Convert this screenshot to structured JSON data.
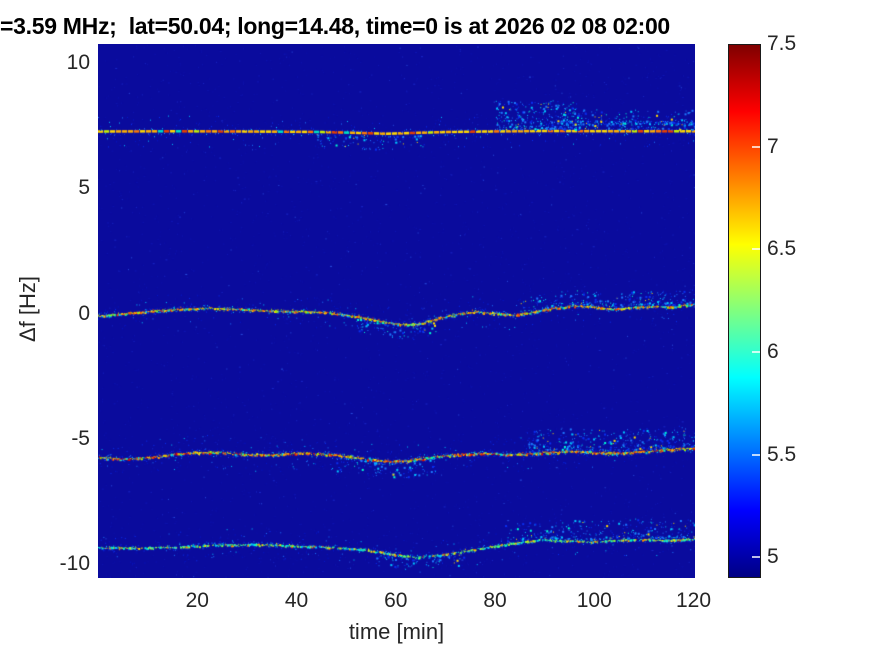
{
  "title": "=3.59 MHz;  lat=50.04; long=14.48, time=0 is at 2026 02 08 02:00",
  "axes": {
    "xlabel": "time [min]",
    "ylabel": "Δf [Hz]",
    "xlim": [
      0,
      120.3
    ],
    "ylim": [
      -10.55,
      10.75
    ],
    "x_ticks": [
      20,
      40,
      60,
      80,
      100,
      120
    ],
    "y_ticks": [
      10,
      5,
      0,
      -5,
      -10
    ],
    "grid": false
  },
  "colorbar": {
    "min": 4.9,
    "max": 7.5,
    "ticks": [
      7.5,
      7,
      6.5,
      6,
      5.5,
      5
    ],
    "jet_stops": [
      {
        "frac": 0.0,
        "color": "#000084"
      },
      {
        "frac": 0.125,
        "color": "#0000ff"
      },
      {
        "frac": 0.375,
        "color": "#00ffff"
      },
      {
        "frac": 0.625,
        "color": "#ffff00"
      },
      {
        "frac": 0.875,
        "color": "#ff0000"
      },
      {
        "frac": 1.0,
        "color": "#800000"
      }
    ]
  },
  "chart_data": {
    "type": "heatmap",
    "subtype": "doppler-spectrogram",
    "description": "HF Doppler-shift spectrogram at 3.59 MHz: four narrow speckled spectral traces on a dark-blue noise floor, near Δf ≈ +7.25, +0.1, -5.6 and -9.3 Hz, each wavering slightly over 0–120 min; extra scattered echoes appear above every trace after t ≈ 80–90 min.",
    "colormap": "jet",
    "value_range": [
      4.9,
      7.5
    ],
    "noise_floor_value": 5.0,
    "background_color": "#0a0b9d",
    "palette": {
      "halo_colors": [
        [
          "#0617c8",
          0.38
        ],
        [
          "#0a2ff0",
          0.3
        ],
        [
          "#1e78ff",
          0.2
        ],
        [
          "#00c8ff",
          0.12
        ]
      ],
      "scatter_colors": [
        [
          "#0a2ff0",
          0.33
        ],
        [
          "#1e78ff",
          0.3
        ],
        [
          "#00c8ff",
          0.24
        ],
        [
          "#00ffd0",
          0.08
        ],
        [
          "#ffe000",
          0.05
        ]
      ],
      "field_noise": {
        "count": 3200,
        "colors": [
          [
            "#0d12ab",
            0.55
          ],
          [
            "#1016b4",
            0.3
          ],
          [
            "#1a28c8",
            0.11
          ],
          [
            "#2a50e0",
            0.04
          ]
        ]
      }
    },
    "traces": [
      {
        "label": "carrier trace ~ +7.25 Hz",
        "mean_hz": 7.25,
        "style": "dash",
        "dash": {
          "period": 6,
          "on": 4.2,
          "height": 2.5
        },
        "points": [
          [
            0,
            7.26
          ],
          [
            15,
            7.27
          ],
          [
            30,
            7.26
          ],
          [
            45,
            7.24
          ],
          [
            53,
            7.2
          ],
          [
            58,
            7.17
          ],
          [
            63,
            7.2
          ],
          [
            70,
            7.24
          ],
          [
            78,
            7.26
          ],
          [
            90,
            7.28
          ],
          [
            105,
            7.27
          ],
          [
            120.3,
            7.27
          ]
        ],
        "line_colors": [
          [
            "#ffd800",
            0.3
          ],
          [
            "#ffb000",
            0.26
          ],
          [
            "#ff7800",
            0.18
          ],
          [
            "#e84000",
            0.12
          ],
          [
            "#c8f000",
            0.07
          ],
          [
            "#00e0c0",
            0.07
          ]
        ],
        "main_density": 1.0,
        "jitter": 0.0,
        "halo_density": 0.5,
        "halo_spread": 2.8,
        "outer_density": 0.3,
        "outer_spread": 8,
        "scatter": [
          {
            "t0": 80,
            "t1": 97,
            "side": "above",
            "max_hz": 1.15,
            "count": 320
          },
          {
            "t0": 94,
            "t1": 120.3,
            "side": "above",
            "max_hz": 0.8,
            "count": 360,
            "band_hz": 0.34
          },
          {
            "t0": 44,
            "t1": 66,
            "side": "below",
            "max_hz": 0.55,
            "count": 90
          }
        ]
      },
      {
        "label": "trace ~ +0.1 Hz",
        "mean_hz": 0.1,
        "style": "speckle",
        "points": [
          [
            0,
            -0.08
          ],
          [
            5,
            0.0
          ],
          [
            10,
            0.1
          ],
          [
            16,
            0.18
          ],
          [
            22,
            0.22
          ],
          [
            28,
            0.18
          ],
          [
            34,
            0.12
          ],
          [
            40,
            0.1
          ],
          [
            46,
            0.05
          ],
          [
            52,
            -0.1
          ],
          [
            57,
            -0.3
          ],
          [
            61,
            -0.44
          ],
          [
            65,
            -0.38
          ],
          [
            68,
            -0.2
          ],
          [
            72,
            -0.02
          ],
          [
            76,
            0.08
          ],
          [
            80,
            0.02
          ],
          [
            84,
            -0.06
          ],
          [
            88,
            0.08
          ],
          [
            92,
            0.24
          ],
          [
            96,
            0.32
          ],
          [
            100,
            0.26
          ],
          [
            104,
            0.2
          ],
          [
            108,
            0.26
          ],
          [
            112,
            0.3
          ],
          [
            116,
            0.27
          ],
          [
            120.3,
            0.38
          ]
        ],
        "line_colors": [
          [
            "#ff4000",
            0.14
          ],
          [
            "#ff9000",
            0.2
          ],
          [
            "#ffe000",
            0.22
          ],
          [
            "#a0f000",
            0.14
          ],
          [
            "#00ffb4",
            0.14
          ],
          [
            "#00c8ff",
            0.16
          ]
        ],
        "main_density": 0.95,
        "jitter": 1.4,
        "halo_density": 0.5,
        "halo_spread": 2.6,
        "outer_density": 0.3,
        "outer_spread": 8,
        "scatter": [
          {
            "t0": 52,
            "t1": 68,
            "side": "below",
            "max_hz": 0.5,
            "count": 80
          },
          {
            "t0": 85,
            "t1": 120.3,
            "side": "above",
            "max_hz": 0.55,
            "count": 220
          }
        ]
      },
      {
        "label": "trace ~ -5.6 Hz",
        "mean_hz": -5.6,
        "style": "speckle",
        "points": [
          [
            0,
            -5.72
          ],
          [
            6,
            -5.8
          ],
          [
            12,
            -5.68
          ],
          [
            18,
            -5.55
          ],
          [
            24,
            -5.52
          ],
          [
            30,
            -5.62
          ],
          [
            36,
            -5.6
          ],
          [
            42,
            -5.56
          ],
          [
            48,
            -5.64
          ],
          [
            54,
            -5.78
          ],
          [
            58,
            -5.88
          ],
          [
            62,
            -5.86
          ],
          [
            66,
            -5.75
          ],
          [
            70,
            -5.65
          ],
          [
            74,
            -5.6
          ],
          [
            78,
            -5.57
          ],
          [
            82,
            -5.62
          ],
          [
            86,
            -5.6
          ],
          [
            90,
            -5.55
          ],
          [
            94,
            -5.48
          ],
          [
            98,
            -5.5
          ],
          [
            102,
            -5.55
          ],
          [
            106,
            -5.55
          ],
          [
            110,
            -5.48
          ],
          [
            114,
            -5.42
          ],
          [
            120.3,
            -5.35
          ]
        ],
        "line_colors": [
          [
            "#e00000",
            0.14
          ],
          [
            "#ff4000",
            0.18
          ],
          [
            "#ff9000",
            0.2
          ],
          [
            "#ffe000",
            0.18
          ],
          [
            "#a0f000",
            0.1
          ],
          [
            "#00ffb4",
            0.1
          ],
          [
            "#00c8ff",
            0.1
          ]
        ],
        "main_density": 0.97,
        "jitter": 1.7,
        "halo_density": 0.6,
        "halo_spread": 3.0,
        "outer_density": 0.35,
        "outer_spread": 9,
        "scatter": [
          {
            "t0": 48,
            "t1": 68,
            "side": "below",
            "max_hz": 0.6,
            "count": 130
          },
          {
            "t0": 86,
            "t1": 120.3,
            "side": "above",
            "max_hz": 0.85,
            "count": 330
          }
        ]
      },
      {
        "label": "trace ~ -9.3 Hz",
        "mean_hz": -9.3,
        "style": "speckle",
        "points": [
          [
            0,
            -9.33
          ],
          [
            8,
            -9.34
          ],
          [
            16,
            -9.3
          ],
          [
            24,
            -9.22
          ],
          [
            32,
            -9.2
          ],
          [
            40,
            -9.26
          ],
          [
            48,
            -9.32
          ],
          [
            54,
            -9.42
          ],
          [
            59,
            -9.58
          ],
          [
            64,
            -9.72
          ],
          [
            69,
            -9.62
          ],
          [
            74,
            -9.45
          ],
          [
            79,
            -9.3
          ],
          [
            84,
            -9.14
          ],
          [
            89,
            -9.02
          ],
          [
            94,
            -9.04
          ],
          [
            99,
            -9.1
          ],
          [
            104,
            -9.04
          ],
          [
            109,
            -9.0
          ],
          [
            114,
            -9.04
          ],
          [
            120.3,
            -8.98
          ]
        ],
        "line_colors": [
          [
            "#00c8ff",
            0.27
          ],
          [
            "#00ffc8",
            0.25
          ],
          [
            "#80ff40",
            0.2
          ],
          [
            "#ffe000",
            0.17
          ],
          [
            "#ff9000",
            0.07
          ],
          [
            "#ff4000",
            0.04
          ]
        ],
        "main_density": 0.8,
        "jitter": 1.2,
        "halo_density": 0.45,
        "halo_spread": 2.4,
        "outer_density": 0.3,
        "outer_spread": 8,
        "scatter": [
          {
            "t0": 56,
            "t1": 74,
            "side": "below",
            "max_hz": 0.45,
            "count": 70
          },
          {
            "t0": 82,
            "t1": 120.3,
            "side": "above",
            "max_hz": 0.75,
            "count": 280
          }
        ]
      }
    ]
  }
}
